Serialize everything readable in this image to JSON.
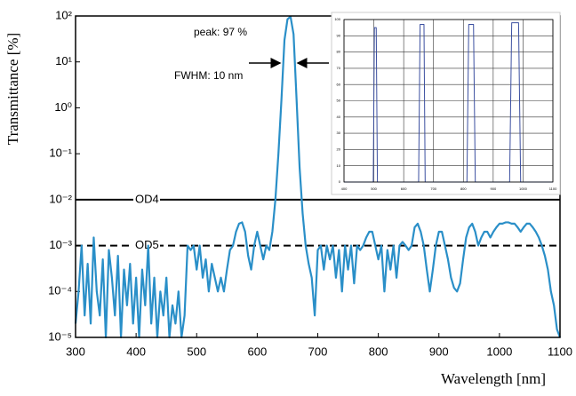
{
  "chart_data": [
    {
      "type": "line",
      "y_scale": "log",
      "x_label": "Wavelength [nm]",
      "y_label": "Transmittance [%]",
      "xlim": [
        300,
        1100
      ],
      "xticks": [
        300,
        400,
        500,
        600,
        700,
        800,
        900,
        1000,
        1100
      ],
      "ylim": [
        1e-05,
        100
      ],
      "yticks": [
        {
          "value": 1e-05,
          "label": "10⁻⁵"
        },
        {
          "value": 0.0001,
          "label": "10⁻⁴"
        },
        {
          "value": 0.001,
          "label": "10⁻³"
        },
        {
          "value": 0.01,
          "label": "10⁻²"
        },
        {
          "value": 0.1,
          "label": "10⁻¹"
        },
        {
          "value": 1,
          "label": "10⁰"
        },
        {
          "value": 10,
          "label": "10¹"
        },
        {
          "value": 100,
          "label": "10²"
        }
      ],
      "annotations": [
        "peak:  97 %",
        "FWHM: 10 nm"
      ],
      "reference_lines": [
        {
          "label": "OD4",
          "value": 0.01,
          "style": "solid"
        },
        {
          "label": "OD5",
          "value": 0.001,
          "style": "dashed"
        }
      ],
      "x": [
        300,
        305,
        310,
        315,
        320,
        325,
        330,
        335,
        340,
        345,
        350,
        355,
        360,
        365,
        370,
        375,
        380,
        385,
        390,
        395,
        400,
        405,
        410,
        415,
        420,
        425,
        430,
        435,
        440,
        445,
        450,
        455,
        460,
        465,
        470,
        475,
        480,
        485,
        490,
        495,
        500,
        505,
        510,
        515,
        520,
        525,
        530,
        535,
        540,
        545,
        550,
        555,
        560,
        565,
        570,
        575,
        580,
        585,
        590,
        595,
        600,
        605,
        610,
        615,
        620,
        625,
        630,
        635,
        640,
        645,
        650,
        655,
        660,
        665,
        670,
        675,
        680,
        685,
        690,
        695,
        700,
        705,
        710,
        715,
        720,
        725,
        730,
        735,
        740,
        745,
        750,
        755,
        760,
        765,
        770,
        775,
        780,
        785,
        790,
        795,
        800,
        805,
        810,
        815,
        820,
        825,
        830,
        835,
        840,
        845,
        850,
        855,
        860,
        865,
        870,
        875,
        880,
        885,
        890,
        895,
        900,
        905,
        910,
        915,
        920,
        925,
        930,
        935,
        940,
        945,
        950,
        955,
        960,
        965,
        970,
        975,
        980,
        985,
        990,
        995,
        1000,
        1005,
        1010,
        1015,
        1020,
        1025,
        1030,
        1035,
        1040,
        1045,
        1050,
        1055,
        1060,
        1065,
        1070,
        1075,
        1080,
        1085,
        1090,
        1095,
        1100
      ],
      "series": [
        {
          "color": "#2a8fc8",
          "values": [
            2e-05,
            0.0001,
            0.001,
            3e-05,
            0.0004,
            2e-05,
            0.0015,
            0.0001,
            3e-05,
            0.0005,
            1e-05,
            0.0008,
            0.0002,
            3e-05,
            0.0006,
            1e-05,
            0.0003,
            5e-05,
            0.0004,
            2e-05,
            0.0002,
            1e-05,
            0.0003,
            5e-05,
            0.001,
            2e-05,
            0.0002,
            1e-05,
            0.0001,
            3e-05,
            0.0002,
            1e-05,
            5e-05,
            2e-05,
            0.0001,
            1e-05,
            3e-05,
            0.001,
            0.0008,
            0.001,
            0.0003,
            0.001,
            0.0002,
            0.0005,
            0.0001,
            0.0004,
            0.0002,
            0.0001,
            0.0002,
            0.0001,
            0.0003,
            0.0008,
            0.001,
            0.002,
            0.003,
            0.0032,
            0.002,
            0.0006,
            0.0003,
            0.001,
            0.002,
            0.001,
            0.0005,
            0.001,
            0.0008,
            0.002,
            0.01,
            0.1,
            1.5,
            30,
            85,
            97,
            40,
            1.5,
            0.05,
            0.005,
            0.001,
            0.0004,
            0.0002,
            3e-05,
            0.0008,
            0.001,
            0.0003,
            0.001,
            0.0005,
            0.001,
            0.0002,
            0.0008,
            0.0001,
            0.001,
            0.0003,
            0.001,
            0.00015,
            0.001,
            0.0008,
            0.001,
            0.0015,
            0.002,
            0.002,
            0.001,
            0.0005,
            0.001,
            0.0001,
            0.0008,
            0.0003,
            0.001,
            0.0002,
            0.001,
            0.0012,
            0.001,
            0.0008,
            0.001,
            0.0025,
            0.003,
            0.002,
            0.001,
            0.0003,
            0.0001,
            0.0003,
            0.001,
            0.002,
            0.002,
            0.001,
            0.0005,
            0.0002,
            0.00012,
            0.0001,
            0.00015,
            0.0005,
            0.0015,
            0.0025,
            0.003,
            0.002,
            0.001,
            0.0015,
            0.002,
            0.002,
            0.0015,
            0.002,
            0.0025,
            0.003,
            0.003,
            0.0032,
            0.0032,
            0.003,
            0.003,
            0.0025,
            0.002,
            0.0025,
            0.003,
            0.003,
            0.0025,
            0.002,
            0.0015,
            0.001,
            0.0006,
            0.0003,
            0.0001,
            5e-05,
            1.5e-05,
            1e-05
          ]
        }
      ]
    },
    {
      "type": "line",
      "xlim": [
        400,
        1100
      ],
      "xticks": [
        400,
        500,
        600,
        700,
        800,
        900,
        1000,
        1100
      ],
      "ylim": [
        0,
        100
      ],
      "yticks": [
        0,
        10,
        20,
        30,
        40,
        50,
        60,
        70,
        80,
        90,
        100
      ],
      "grid": true,
      "x": [
        400,
        498,
        502,
        508,
        512,
        650,
        655,
        668,
        672,
        812,
        818,
        834,
        840,
        955,
        962,
        985,
        992,
        1100
      ],
      "series": [
        {
          "color": "#3b4fa0",
          "values": [
            0,
            0,
            95,
            95,
            0,
            0,
            97,
            97,
            0,
            0,
            97,
            97,
            0,
            0,
            98,
            98,
            0,
            0
          ]
        }
      ]
    }
  ]
}
